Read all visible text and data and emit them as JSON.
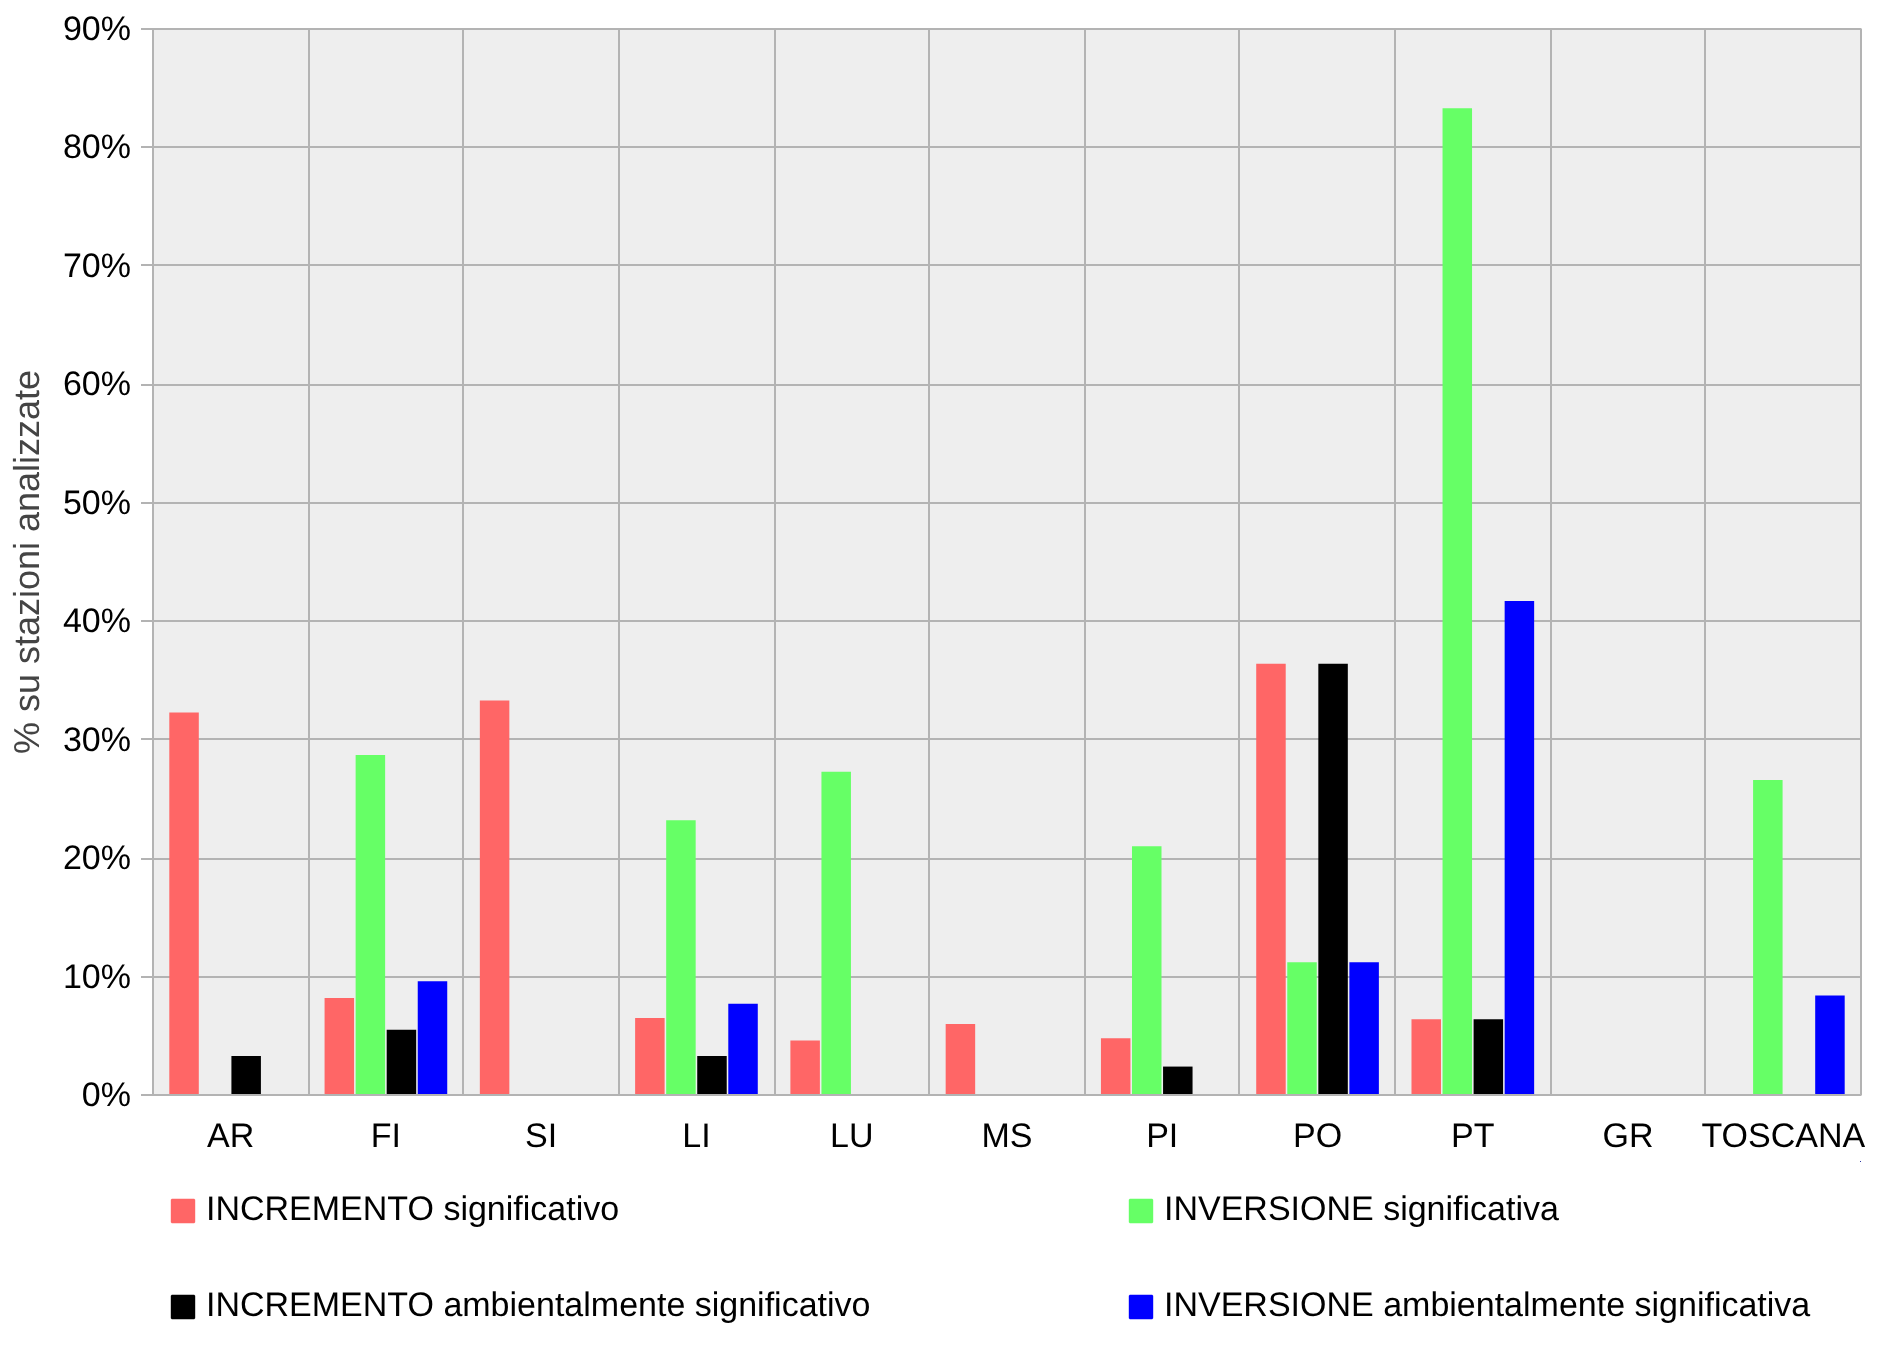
{
  "chart_data": {
    "type": "bar",
    "ylabel": "% su stazioni analizzate",
    "categories": [
      "AR",
      "FI",
      "SI",
      "LI",
      "LU",
      "MS",
      "PI",
      "PO",
      "PT",
      "GR",
      "TOSCANA"
    ],
    "series": [
      {
        "name": "INCREMENTO significativo",
        "color": "#ff6666",
        "values": [
          32.3,
          8.2,
          33.3,
          6.5,
          4.6,
          6.0,
          4.8,
          36.4,
          6.4,
          null,
          null
        ]
      },
      {
        "name": "INVERSIONE significativa",
        "color": "#66ff66",
        "values": [
          null,
          28.7,
          null,
          23.2,
          27.3,
          null,
          21.0,
          11.2,
          83.3,
          null,
          26.6
        ]
      },
      {
        "name": "INCREMENTO ambientalmente significativo",
        "color": "#000000",
        "values": [
          3.3,
          5.5,
          null,
          3.3,
          null,
          null,
          2.4,
          36.4,
          6.4,
          null,
          null
        ]
      },
      {
        "name": "INVERSIONE ambientalmente significativa",
        "color": "#0000ff",
        "values": [
          null,
          9.6,
          null,
          7.7,
          null,
          null,
          null,
          11.2,
          41.7,
          null,
          8.4
        ]
      }
    ],
    "ylim": [
      0,
      90
    ],
    "yticks": [
      {
        "value": 0,
        "label": "0%"
      },
      {
        "value": 10,
        "label": "10%"
      },
      {
        "value": 20,
        "label": "20%"
      },
      {
        "value": 30,
        "label": "30%"
      },
      {
        "value": 40,
        "label": "40%"
      },
      {
        "value": 50,
        "label": "50%"
      },
      {
        "value": 60,
        "label": "60%"
      },
      {
        "value": 70,
        "label": "70%"
      },
      {
        "value": 80,
        "label": "80%"
      },
      {
        "value": 90,
        "label": "90%"
      }
    ],
    "grid": true,
    "legend": "bottom"
  }
}
